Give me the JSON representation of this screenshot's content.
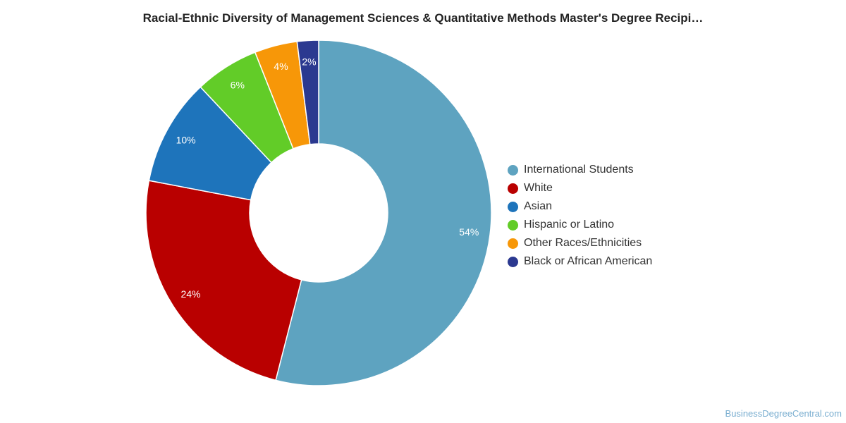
{
  "chart_data": {
    "type": "pie",
    "variant": "donut",
    "title": "Racial-Ethnic Diversity of Management Sciences & Quantitative Methods Master's Degree Recipi…",
    "slices": [
      {
        "name": "International Students",
        "value": 54,
        "label": "54%",
        "color": "#5ea3c0"
      },
      {
        "name": "White",
        "value": 24,
        "label": "24%",
        "color": "#b90000"
      },
      {
        "name": "Asian",
        "value": 10,
        "label": "10%",
        "color": "#1e74bb"
      },
      {
        "name": "Hispanic or Latino",
        "value": 6,
        "label": "6%",
        "color": "#62cc28"
      },
      {
        "name": "Other Races/Ethnicities",
        "value": 4,
        "label": "4%",
        "color": "#f79708"
      },
      {
        "name": "Black or African American",
        "value": 2,
        "label": "2%",
        "color": "#2b3990"
      }
    ],
    "legend_position": "right"
  },
  "watermark": "BusinessDegreeCentral.com"
}
